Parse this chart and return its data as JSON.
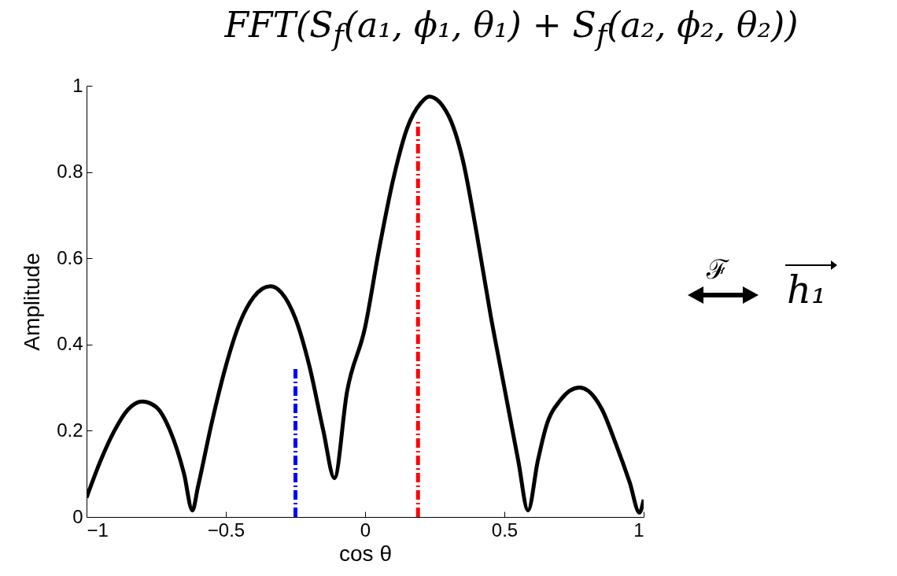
{
  "chart_data": {
    "type": "line",
    "title": "FFT(S$_{f}$(a₁, ϕ₁, θ₁) + S$_{f}$(a₂, ϕ₂, θ₂))",
    "xlabel": "cos θ",
    "ylabel": "Amplitude",
    "annotations": [
      "ℱ",
      "h₁"
    ],
    "xlim": [
      -1,
      1
    ],
    "ylim": [
      0,
      1
    ],
    "xticks": [
      {
        "value": -1,
        "label": "−1"
      },
      {
        "value": -0.5,
        "label": "−0.5"
      },
      0,
      0.5,
      1
    ],
    "yticks": [
      0,
      0.2,
      0.4,
      0.6,
      0.8,
      1
    ],
    "grid": false,
    "marker": "none",
    "series": [
      {
        "color": "#000000",
        "line_style": "solid",
        "x": [
          -1,
          -0.95,
          -0.9,
          -0.85,
          -0.8,
          -0.75,
          -0.7,
          -0.65,
          -0.62,
          -0.6,
          -0.55,
          -0.5,
          -0.45,
          -0.4,
          -0.34,
          -0.3,
          -0.25,
          -0.2,
          -0.15,
          -0.11,
          -0.065,
          0,
          0.05,
          0.1,
          0.15,
          0.2,
          0.23,
          0.3,
          0.35,
          0.4,
          0.45,
          0.5,
          0.55,
          0.585,
          0.62,
          0.65,
          0.7,
          0.77,
          0.85,
          0.9,
          0.95,
          0.985,
          1
        ],
        "values": [
          0.045,
          0.13,
          0.2,
          0.25,
          0.268,
          0.255,
          0.2,
          0.1,
          0.015,
          0.07,
          0.22,
          0.35,
          0.45,
          0.51,
          0.535,
          0.52,
          0.46,
          0.35,
          0.2,
          0.09,
          0.29,
          0.44,
          0.62,
          0.78,
          0.9,
          0.96,
          0.975,
          0.93,
          0.83,
          0.66,
          0.47,
          0.3,
          0.13,
          0.015,
          0.13,
          0.21,
          0.27,
          0.3,
          0.25,
          0.17,
          0.08,
          0.01,
          0.04
        ]
      },
      {
        "color": "#0000ff",
        "line_style": "dashed",
        "x": [
          -0.25,
          -0.25
        ],
        "values": [
          0,
          0.35
        ]
      },
      {
        "color": "#ff0000",
        "line_style": "dashed",
        "x": [
          0.19,
          0.19
        ],
        "values": [
          0,
          0.92
        ]
      }
    ]
  }
}
